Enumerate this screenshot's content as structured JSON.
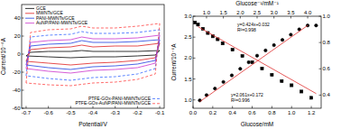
{
  "chart_data": [
    {
      "type": "line",
      "x_label": "Potential/V",
      "y_label": "Current/10⁻⁶A",
      "xlim": [
        -0.72,
        -0.08
      ],
      "xticks": [
        -0.7,
        -0.6,
        -0.5,
        -0.4,
        -0.3,
        -0.2,
        -0.1
      ],
      "ylim": [
        -60,
        55
      ],
      "yticks": [
        -60,
        -40,
        -20,
        0,
        20,
        40
      ],
      "legend": "upper left",
      "series": [
        {
          "name": "GCE",
          "color": "#000000",
          "line_style": "solid",
          "x": [
            -0.7,
            -0.68,
            -0.6,
            -0.5,
            -0.45,
            -0.4,
            -0.3,
            -0.2,
            -0.1,
            -0.12,
            -0.2,
            -0.3,
            -0.4,
            -0.5,
            -0.6,
            -0.7
          ],
          "values": [
            -2,
            2,
            3,
            3,
            4,
            3,
            3,
            3,
            4,
            -1,
            -2,
            -3,
            -3,
            -4,
            -3,
            -2
          ]
        },
        {
          "name": "MWNTs/GCE",
          "color": "#e02020",
          "line_style": "solid",
          "x": [
            -0.7,
            -0.68,
            -0.6,
            -0.5,
            -0.45,
            -0.4,
            -0.3,
            -0.2,
            -0.1,
            -0.12,
            -0.2,
            -0.3,
            -0.4,
            -0.5,
            -0.6,
            -0.7
          ],
          "values": [
            -8,
            5,
            7,
            8,
            10,
            8,
            9,
            9,
            12,
            -4,
            -7,
            -9,
            -10,
            -12,
            -10,
            -8
          ]
        },
        {
          "name": "PANI-MWNTs/GCE",
          "color": "#2040e0",
          "line_style": "solid",
          "x": [
            -0.7,
            -0.68,
            -0.6,
            -0.5,
            -0.45,
            -0.4,
            -0.3,
            -0.2,
            -0.1,
            -0.12,
            -0.2,
            -0.3,
            -0.4,
            -0.5,
            -0.6,
            -0.7
          ],
          "values": [
            -12,
            9,
            11,
            12,
            15,
            13,
            13,
            14,
            16,
            -7,
            -11,
            -13,
            -14,
            -17,
            -15,
            -12
          ]
        },
        {
          "name": "AuNP/PANI-MWNTs/GCE",
          "color": "#cc33cc",
          "line_style": "solid",
          "x": [
            -0.7,
            -0.68,
            -0.6,
            -0.5,
            -0.45,
            -0.4,
            -0.3,
            -0.2,
            -0.1,
            -0.12,
            -0.2,
            -0.3,
            -0.4,
            -0.5,
            -0.6,
            -0.7
          ],
          "values": [
            -16,
            13,
            15,
            16,
            19,
            17,
            17,
            18,
            21,
            -10,
            -15,
            -17,
            -18,
            -21,
            -19,
            -16
          ]
        },
        {
          "name": "PTFE-GOx-PANI-MWNTs/GCE",
          "color": "#3366ff",
          "line_style": "dashed",
          "x": [
            -0.7,
            -0.68,
            -0.6,
            -0.5,
            -0.45,
            -0.4,
            -0.3,
            -0.2,
            -0.1,
            -0.12,
            -0.2,
            -0.3,
            -0.4,
            -0.5,
            -0.6,
            -0.7
          ],
          "values": [
            -24,
            19,
            21,
            22,
            25,
            23,
            23,
            24,
            27,
            -16,
            -22,
            -25,
            -26,
            -29,
            -27,
            -24
          ]
        },
        {
          "name": "PTFE-GOx-AuNP/PANI-MWNTs/GCE",
          "color": "#ff4444",
          "line_style": "dashed",
          "x": [
            -0.7,
            -0.68,
            -0.6,
            -0.5,
            -0.45,
            -0.4,
            -0.3,
            -0.2,
            -0.1,
            -0.12,
            -0.2,
            -0.3,
            -0.4,
            -0.5,
            -0.6,
            -0.7
          ],
          "values": [
            -32,
            24,
            27,
            28,
            31,
            29,
            29,
            31,
            34,
            -22,
            -28,
            -31,
            -32,
            -35,
            -34,
            -32
          ]
        }
      ]
    },
    {
      "type": "scatter",
      "x_label": "Glucose/mM",
      "x2_label": "Glucose⁻¹/mM⁻¹",
      "y_label": "Current/10⁻⁶A",
      "xlim": [
        0,
        1.3
      ],
      "xticks": [
        {
          "value": 0,
          "label": "0.0"
        },
        0.2,
        0.4,
        0.6,
        0.8,
        {
          "value": 1,
          "label": "1.0"
        },
        1.2
      ],
      "x2lim": [
        0.6,
        4.4
      ],
      "x2ticks": [
        {
          "value": 1,
          "label": "1.0"
        },
        1.5,
        {
          "value": 2,
          "label": "2.0"
        },
        2.5,
        {
          "value": 3,
          "label": "3.0"
        },
        3.5,
        {
          "value": 4,
          "label": "4.0"
        }
      ],
      "ylim": [
        0.8,
        3.0
      ],
      "yticks": [
        {
          "value": 1,
          "label": "1.0"
        },
        1.5,
        {
          "value": 2,
          "label": "2.0"
        },
        2.5,
        {
          "value": 3,
          "label": "3.0"
        }
      ],
      "y2lim": [
        0.3,
        1.0
      ],
      "y2ticks": [
        0.4,
        0.6,
        0.8,
        {
          "value": 1,
          "label": "1.0"
        }
      ],
      "annotations": [
        "y=2.061x+0.172",
        "R²=0.996",
        "y=0.424x+0.032",
        "R²=0.998"
      ],
      "series": [
        {
          "type": "scatter",
          "marker": "square",
          "color": "#000000",
          "x": [
            0.02,
            0.05,
            0.1,
            0.15,
            0.2,
            0.25,
            0.3,
            0.4,
            0.5,
            0.6,
            0.7,
            0.8,
            0.9,
            1.0,
            1.1,
            1.2
          ],
          "values": [
            2.85,
            2.8,
            2.7,
            2.6,
            2.52,
            2.45,
            2.35,
            2.2,
            2.05,
            1.9,
            1.75,
            1.6,
            1.45,
            1.35,
            1.2,
            1.05
          ]
        },
        {
          "type": "scatter",
          "marker": "circle",
          "color": "#000000",
          "axis": "y2",
          "x": [
            0.8,
            1.0,
            1.25,
            1.5,
            1.75,
            2.0,
            2.25,
            2.5,
            2.75,
            3.0,
            3.25,
            3.5,
            3.75,
            4.0,
            4.25
          ],
          "values": [
            0.36,
            0.4,
            0.45,
            0.5,
            0.55,
            0.6,
            0.65,
            0.7,
            0.74,
            0.78,
            0.82,
            0.86,
            0.9,
            0.93,
            0.93
          ]
        },
        {
          "type": "line",
          "color": "#e03030",
          "line_style": "solid",
          "x": [
            0.05,
            1.25
          ],
          "values": [
            2.75,
            1.15
          ]
        },
        {
          "type": "line",
          "color": "#e03030",
          "line_style": "solid",
          "axis": "y2",
          "x": [
            0.8,
            4.0
          ],
          "values": [
            0.35,
            0.93
          ]
        }
      ]
    }
  ]
}
